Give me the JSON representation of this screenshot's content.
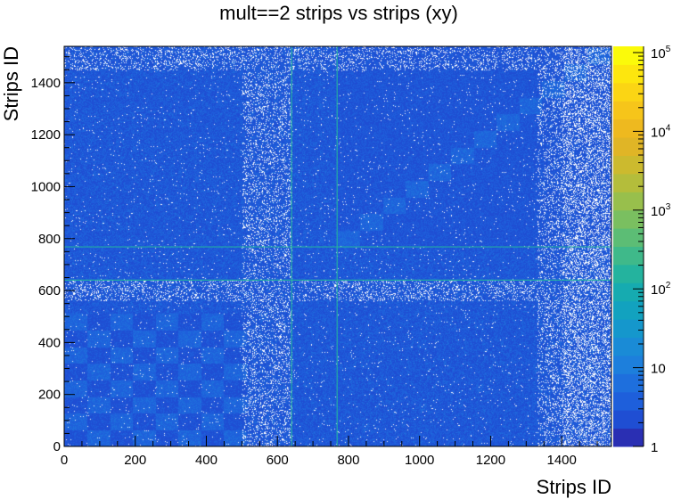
{
  "chart_data": {
    "type": "heatmap",
    "title": "mult==2 strips vs strips (xy)",
    "xlabel": "Strips ID",
    "ylabel": "Strips ID",
    "xlim": [
      0,
      1540
    ],
    "ylim": [
      0,
      1540
    ],
    "x_ticks": [
      0,
      200,
      400,
      600,
      800,
      1000,
      1200,
      1400
    ],
    "y_ticks": [
      0,
      200,
      400,
      600,
      800,
      1000,
      1200,
      1400
    ],
    "x_tick_labels": [
      "0",
      "200",
      "400",
      "600",
      "800",
      "1000",
      "1200",
      "1400"
    ],
    "y_tick_labels": [
      "0",
      "200",
      "400",
      "600",
      "800",
      "1000",
      "1200",
      "1400"
    ],
    "z_scale": "log",
    "zlim": [
      1,
      120000
    ],
    "z_ticks": [
      1,
      10,
      100,
      1000,
      10000,
      100000
    ],
    "z_tick_labels": [
      {
        "base": "1",
        "exp": ""
      },
      {
        "base": "10",
        "exp": ""
      },
      {
        "base": "10",
        "exp": "2"
      },
      {
        "base": "10",
        "exp": "3"
      },
      {
        "base": "10",
        "exp": "4"
      },
      {
        "base": "10",
        "exp": "5"
      }
    ],
    "palette": [
      "#2a2fb3",
      "#1f4ed3",
      "#1e5fdb",
      "#1e6fdd",
      "#1d7fdc",
      "#1a8bd6",
      "#1597cc",
      "#12a2bf",
      "#16abb0",
      "#24b39e",
      "#3fb98a",
      "#5cbd75",
      "#7abf60",
      "#98bf4c",
      "#b4bd3b",
      "#ccba2e",
      "#e0b526",
      "#eeb91f",
      "#f6c51a",
      "#fbd514",
      "#fde60e",
      "#fbfa0a"
    ],
    "background_value_range": [
      1,
      5
    ],
    "empty_bins": "white",
    "hot_lines": [
      {
        "axis": "y",
        "value": 768
      },
      {
        "axis": "y",
        "value": 640
      },
      {
        "axis": "x",
        "value": 640
      },
      {
        "axis": "x",
        "value": 768
      }
    ],
    "diagonal_blocks_size": 64,
    "grid": false,
    "grid_note": "block structure: checkerboard pattern in lower-left quadrant, diagonal blocks in upper-right quadrant"
  }
}
